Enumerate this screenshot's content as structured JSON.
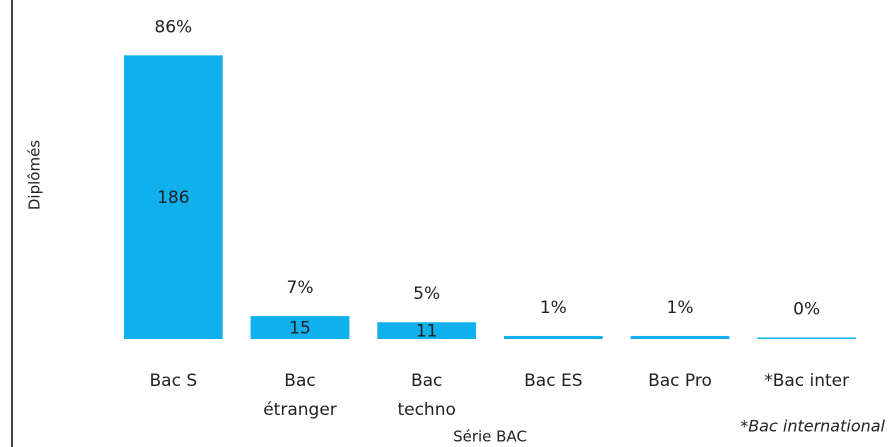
{
  "chart_data": {
    "type": "bar",
    "x_label": "Série BAC",
    "y_label": "Diplômés",
    "categories": [
      "Bac S",
      "Bac\nétranger",
      "Bac\ntechno",
      "Bac ES",
      "Bac Pro",
      "*Bac inter"
    ],
    "values": [
      186,
      15,
      11,
      2,
      2,
      1
    ],
    "value_labels": [
      "186",
      "15",
      "11",
      null,
      null,
      null
    ],
    "percent_labels": [
      "86%",
      "7%",
      "5%",
      "1%",
      "1%",
      "0%"
    ],
    "color": "#0fb0ec",
    "ylim": [
      0,
      200
    ],
    "footnote": "*Bac international"
  }
}
